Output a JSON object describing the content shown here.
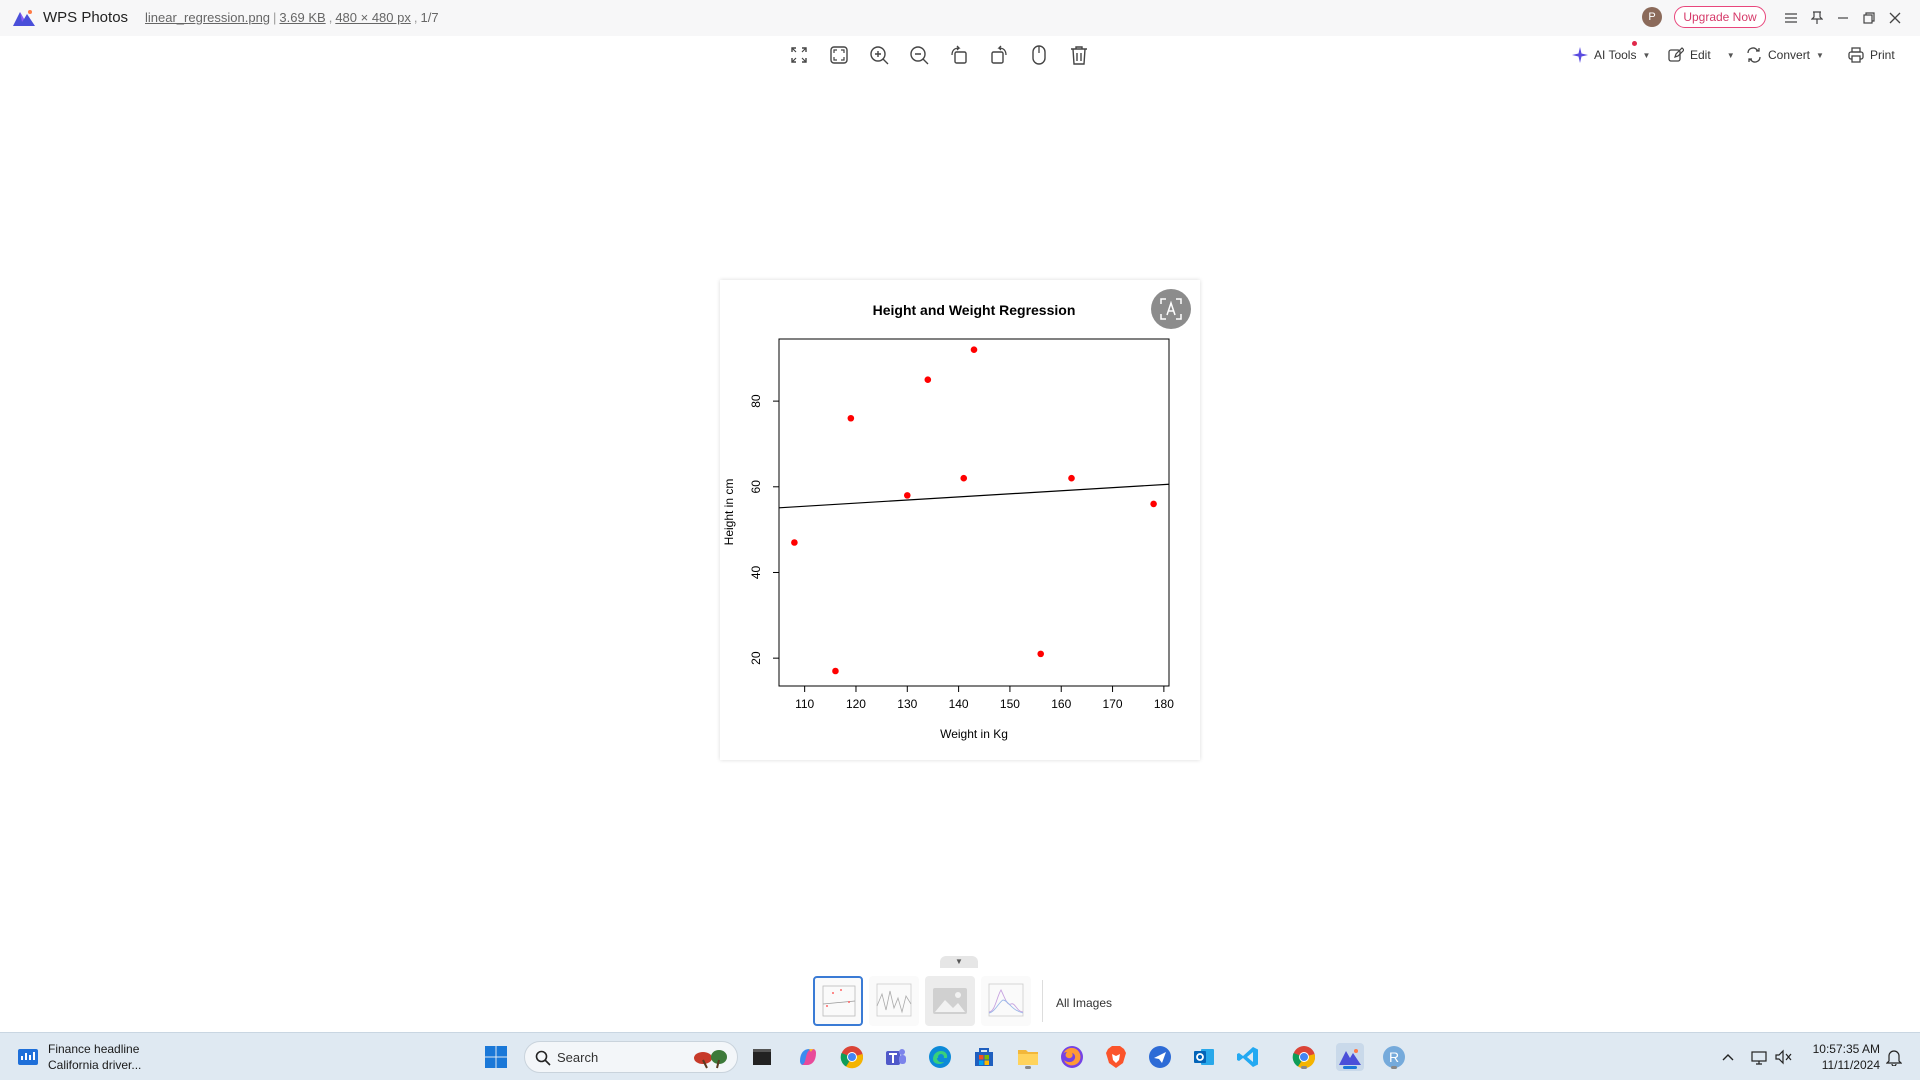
{
  "titlebar": {
    "app_name": "WPS Photos",
    "file_name": "linear_regression.png",
    "file_size": "3.69 KB",
    "dimensions": "480 × 480 px",
    "position": "1/7",
    "avatar_letter": "P",
    "upgrade_label": "Upgrade Now"
  },
  "toolbar": {
    "icons": [
      "fullscreen-icon",
      "fit-window-icon",
      "zoom-in-icon",
      "zoom-out-icon",
      "rotate-left-icon",
      "rotate-right-icon",
      "mouse-icon",
      "delete-icon"
    ],
    "ai_tools_label": "AI Tools",
    "edit_label": "Edit",
    "convert_label": "Convert",
    "print_label": "Print"
  },
  "chart_data": {
    "type": "scatter",
    "title": "Height and Weight Regression",
    "xlabel": "Weight in Kg",
    "ylabel": "Height in cm",
    "xlim": [
      105,
      181
    ],
    "ylim": [
      13.5,
      94.5
    ],
    "xticks": [
      110,
      120,
      130,
      140,
      150,
      160,
      170,
      180
    ],
    "yticks": [
      20,
      40,
      60,
      80
    ],
    "points": [
      {
        "x": 108,
        "y": 47
      },
      {
        "x": 116,
        "y": 17
      },
      {
        "x": 119,
        "y": 76
      },
      {
        "x": 130,
        "y": 58
      },
      {
        "x": 134,
        "y": 85
      },
      {
        "x": 141,
        "y": 62
      },
      {
        "x": 143,
        "y": 92
      },
      {
        "x": 156,
        "y": 21
      },
      {
        "x": 162,
        "y": 62
      },
      {
        "x": 178,
        "y": 56
      }
    ],
    "regression_line": {
      "x": [
        105,
        181
      ],
      "y": [
        55.1,
        60.6
      ]
    },
    "point_color": "#ff0000",
    "line_color": "#000000",
    "grid": false
  },
  "strip": {
    "all_images_label": "All Images"
  },
  "taskbar": {
    "widget_title": "Finance headline",
    "widget_sub": "California driver...",
    "search_placeholder": "Search",
    "time": "10:57:35 AM",
    "date": "11/11/2024"
  }
}
